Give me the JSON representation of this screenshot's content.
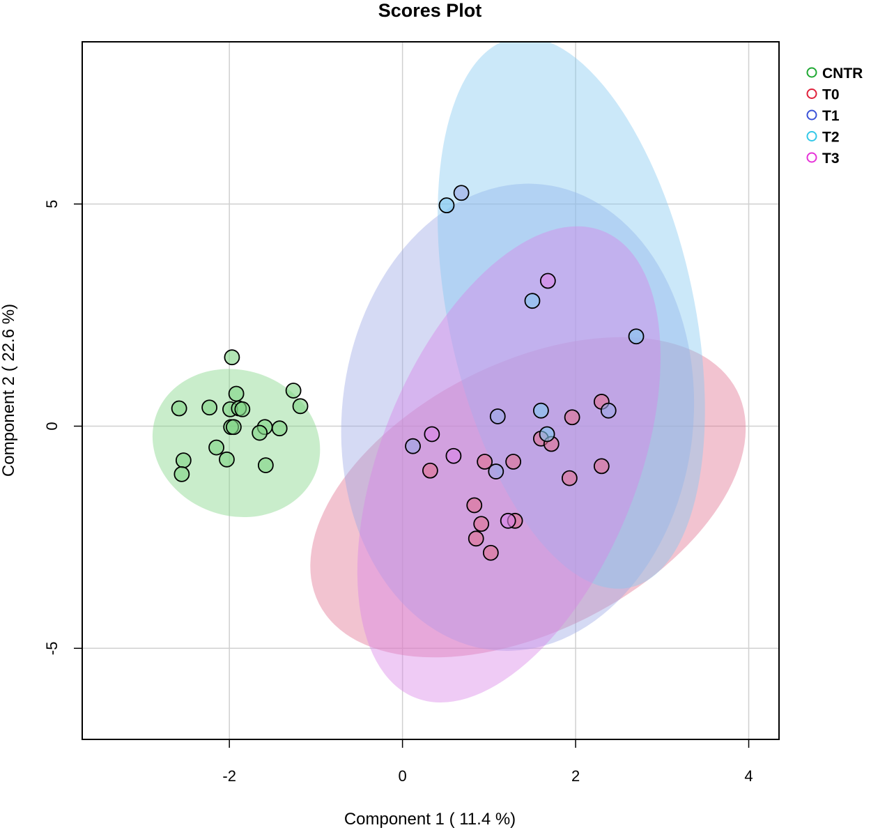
{
  "chart_data": {
    "type": "scatter",
    "title": "Scores Plot",
    "xlabel": "Component 1 ( 11.4 %)",
    "ylabel": "Component 2 ( 22.6 %)",
    "xlim": [
      -3.7,
      4.35
    ],
    "ylim": [
      -7.05,
      8.65
    ],
    "xticks": [
      -2,
      0,
      2,
      4
    ],
    "yticks": [
      -5,
      0,
      5
    ],
    "xgrid": [
      -2,
      0,
      2,
      4
    ],
    "ygrid": [
      -5,
      0,
      5
    ],
    "grid": true,
    "legend_position": "top-right",
    "series": [
      {
        "name": "CNTR",
        "color": "#1ea832",
        "fill": "#7fd484",
        "ellipse": {
          "center": [
            -1.92,
            -0.38
          ],
          "semi_axes": [
            0.98,
            1.64
          ],
          "angle_deg": 18
        },
        "points": [
          [
            -1.97,
            1.55
          ],
          [
            -1.92,
            0.73
          ],
          [
            -1.26,
            0.8
          ],
          [
            -1.18,
            0.45
          ],
          [
            -2.58,
            0.4
          ],
          [
            -2.23,
            0.42
          ],
          [
            -1.99,
            0.38
          ],
          [
            -1.89,
            0.4
          ],
          [
            -1.85,
            0.38
          ],
          [
            -1.98,
            -0.02
          ],
          [
            -1.95,
            -0.02
          ],
          [
            -1.59,
            -0.02
          ],
          [
            -1.42,
            -0.05
          ],
          [
            -1.65,
            -0.15
          ],
          [
            -2.15,
            -0.48
          ],
          [
            -2.03,
            -0.75
          ],
          [
            -2.53,
            -0.77
          ],
          [
            -1.58,
            -0.88
          ],
          [
            -2.55,
            -1.08
          ]
        ]
      },
      {
        "name": "T0",
        "color": "#e0203a",
        "fill": "#e07090",
        "ellipse": {
          "center": [
            1.45,
            -1.6
          ],
          "semi_axes": [
            1.55,
            5.28
          ],
          "angle_deg": 63
        },
        "points": [
          [
            2.3,
            0.55
          ],
          [
            1.96,
            0.2
          ],
          [
            1.6,
            -0.28
          ],
          [
            1.72,
            -0.4
          ],
          [
            0.95,
            -0.8
          ],
          [
            1.28,
            -0.8
          ],
          [
            2.3,
            -0.9
          ],
          [
            0.32,
            -1.0
          ],
          [
            1.93,
            -1.17
          ],
          [
            0.83,
            -1.78
          ],
          [
            0.91,
            -2.2
          ],
          [
            1.3,
            -2.13
          ],
          [
            0.85,
            -2.53
          ],
          [
            1.02,
            -2.85
          ]
        ]
      },
      {
        "name": "T1",
        "color": "#3a52d8",
        "fill": "#9aa6e4",
        "ellipse": {
          "center": [
            1.33,
            0.2
          ],
          "semi_axes": [
            2.03,
            5.27
          ],
          "angle_deg": 6
        },
        "points": [
          [
            0.68,
            5.25
          ],
          [
            1.1,
            0.22
          ],
          [
            2.38,
            0.35
          ],
          [
            0.12,
            -0.45
          ],
          [
            1.08,
            -1.02
          ]
        ]
      },
      {
        "name": "T2",
        "color": "#33c8e8",
        "fill": "#82c8f0",
        "ellipse": {
          "center": [
            1.95,
            2.55
          ],
          "semi_axes": [
            1.42,
            6.32
          ],
          "angle_deg": -12
        },
        "points": [
          [
            0.51,
            4.97
          ],
          [
            1.5,
            2.82
          ],
          [
            2.7,
            2.02
          ],
          [
            1.6,
            0.35
          ],
          [
            1.67,
            -0.18
          ]
        ]
      },
      {
        "name": "T3",
        "color": "#e632d8",
        "fill": "#d884e8",
        "ellipse": {
          "center": [
            1.23,
            -0.86
          ],
          "semi_axes": [
            1.48,
            5.66
          ],
          "angle_deg": 22
        },
        "points": [
          [
            1.68,
            3.27
          ],
          [
            0.34,
            -0.18
          ],
          [
            0.59,
            -0.67
          ],
          [
            1.22,
            -2.13
          ]
        ]
      }
    ]
  }
}
